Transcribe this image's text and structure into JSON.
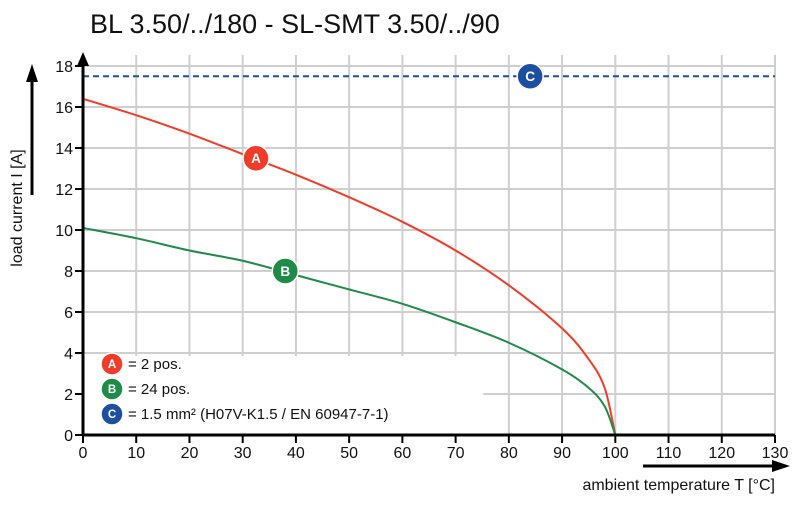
{
  "chart_data": {
    "type": "line",
    "title": "BL 3.50/../180 - SL-SMT 3.50/../90",
    "xlabel": "ambient temperature T [°C]",
    "ylabel": "load current I [A]",
    "xlim": [
      0,
      130
    ],
    "ylim": [
      0,
      18
    ],
    "xticks": [
      0,
      10,
      20,
      30,
      40,
      50,
      60,
      70,
      80,
      90,
      100,
      110,
      120,
      130
    ],
    "yticks": [
      0,
      2,
      4,
      6,
      8,
      10,
      12,
      14,
      16,
      18
    ],
    "grid": true,
    "legend_placement": "bottom-left",
    "series": [
      {
        "marker": "A",
        "label": "= 2 pos.",
        "color": "#f03c28",
        "style": "solid",
        "x": [
          0,
          10,
          20,
          30,
          40,
          50,
          60,
          70,
          80,
          90,
          95,
          98,
          100
        ],
        "y": [
          16.4,
          15.6,
          14.7,
          13.7,
          12.7,
          11.6,
          10.4,
          9.0,
          7.3,
          5.2,
          3.7,
          2.3,
          0
        ]
      },
      {
        "marker": "B",
        "label": "= 24 pos.",
        "color": "#1e8c46",
        "style": "solid",
        "x": [
          0,
          10,
          20,
          30,
          40,
          50,
          60,
          70,
          80,
          90,
          95,
          98,
          100
        ],
        "y": [
          10.1,
          9.6,
          9.0,
          8.5,
          7.8,
          7.1,
          6.4,
          5.5,
          4.5,
          3.2,
          2.3,
          1.4,
          0
        ]
      },
      {
        "marker": "C",
        "label": "= 1.5 mm² (H07V-K1.5 / EN 60947-7-1)",
        "color": "#1c4fa0",
        "style": "dashed",
        "x": [
          0,
          130
        ],
        "y": [
          17.5,
          17.5
        ]
      }
    ],
    "marker_positions": [
      {
        "marker": "A",
        "x": 32.5,
        "y": 13.5
      },
      {
        "marker": "B",
        "x": 38,
        "y": 8.0
      },
      {
        "marker": "C",
        "x": 84,
        "y": 17.5
      }
    ]
  }
}
